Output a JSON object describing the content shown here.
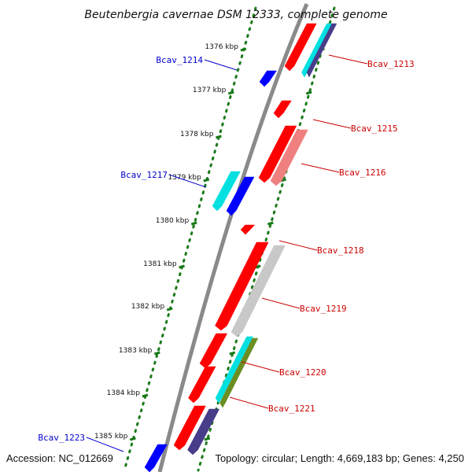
{
  "title": "Beutenbergia cavernae DSM 12333, complete genome",
  "footer": {
    "accession": "Accession: NC_012669",
    "summary": "Topology: circular; Length: 4,669,183 bp; Genes: 4,250"
  },
  "colors": {
    "forward_label": "#0000cc",
    "reverse_label": "#cc0000",
    "backbone": "#8a8a8a",
    "tick": "#1a7a1a",
    "red": "#ff0000",
    "pink": "#f08080",
    "cyan": "#00e0e0",
    "blue": "#0000ff",
    "gray": "#c8c8c8",
    "olive": "#6b8e23",
    "slate": "#483d8b"
  },
  "ticks": [
    "1376 kbp",
    "1377 kbp",
    "1378 kbp",
    "1379 kbp",
    "1380 kbp",
    "1381 kbp",
    "1382 kbp",
    "1383 kbp",
    "1384 kbp",
    "1385 kbp"
  ],
  "genes": [
    {
      "label": "Bcav_1214",
      "strand": "forward"
    },
    {
      "label": "Bcav_1217",
      "strand": "forward"
    },
    {
      "label": "Bcav_1223",
      "strand": "forward"
    },
    {
      "label": "Bcav_1213",
      "strand": "reverse"
    },
    {
      "label": "Bcav_1215",
      "strand": "reverse"
    },
    {
      "label": "Bcav_1216",
      "strand": "reverse"
    },
    {
      "label": "Bcav_1218",
      "strand": "reverse"
    },
    {
      "label": "Bcav_1219",
      "strand": "reverse"
    },
    {
      "label": "Bcav_1220",
      "strand": "reverse"
    },
    {
      "label": "Bcav_1221",
      "strand": "reverse"
    }
  ]
}
